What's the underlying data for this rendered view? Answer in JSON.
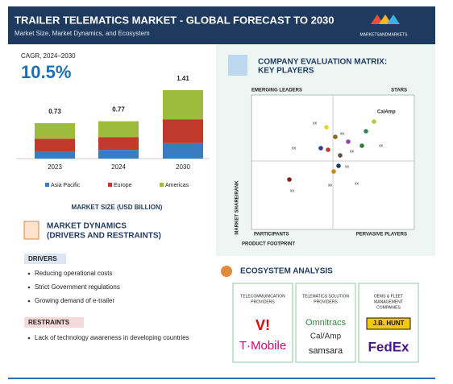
{
  "header": {
    "title": "TRAILER TELEMATICS MARKET - GLOBAL FORECAST TO 2030",
    "subtitle": "Market Size, Market Dynamics, and Ecosystem",
    "brand": "MARKETSANDMARKETS"
  },
  "cagr": {
    "label": "CAGR, 2024–2030",
    "value": "10.5%"
  },
  "chart_data": {
    "type": "bar",
    "stacked": true,
    "title": "MARKET SIZE (USD BILLION)",
    "categories": [
      "2023",
      "2024",
      "2030"
    ],
    "totals": [
      0.73,
      0.77,
      1.41
    ],
    "series": [
      {
        "name": "Asia Pacific",
        "color": "#3a7cc0",
        "values": [
          0.15,
          0.18,
          0.32
        ]
      },
      {
        "name": "Europe",
        "color": "#c0392b",
        "values": [
          0.26,
          0.26,
          0.49
        ]
      },
      {
        "name": "Americas",
        "color": "#9dbb3c",
        "values": [
          0.32,
          0.33,
          0.6
        ]
      }
    ]
  },
  "dynamics": {
    "title": [
      "MARKET DYNAMICS",
      "(DRIVERS AND RESTRAINTS)"
    ],
    "drivers_label": "DRIVERS",
    "drivers": [
      "Reducing operational costs",
      "Strict Government regulations",
      "Growing demand of e-trailer"
    ],
    "restraints_label": "RESTRAINTS",
    "restraints": [
      "Lack of technology awareness in developing countries"
    ]
  },
  "matrix": {
    "title": [
      "COMPANY EVALUATION MATRIX:",
      "KEY PLAYERS"
    ],
    "quadrants": [
      "EMERGING LEADERS",
      "STARS",
      "PARTICIPANTS",
      "PERVASIVE PLAYERS"
    ],
    "y_label": "MARKET SHARE/RANK",
    "x_label": "PRODUCT FOOTPRINT",
    "labels": [
      "CalAmp",
      "xx",
      "xx",
      "xx",
      "xx",
      "xx",
      "xx",
      "xx",
      "xx",
      "xx"
    ]
  },
  "ecosystem": {
    "title": "ECOSYSTEM ANALYSIS",
    "columns": [
      {
        "header": [
          "TELECOMMUNICATION",
          "PROVIDERS"
        ],
        "logos": [
          "V!",
          "T·Mobile"
        ]
      },
      {
        "header": [
          "TELEMATICS SOLUTION",
          "PROVIDERS"
        ],
        "logos": [
          "Omnitracs",
          "Cal/Amp",
          "samsara"
        ]
      },
      {
        "header": [
          "OEMS & FLEET",
          "MANAGEMENT",
          "COMPANIES"
        ],
        "logos": [
          "J.B. HUNT",
          "FedEx"
        ]
      }
    ]
  }
}
